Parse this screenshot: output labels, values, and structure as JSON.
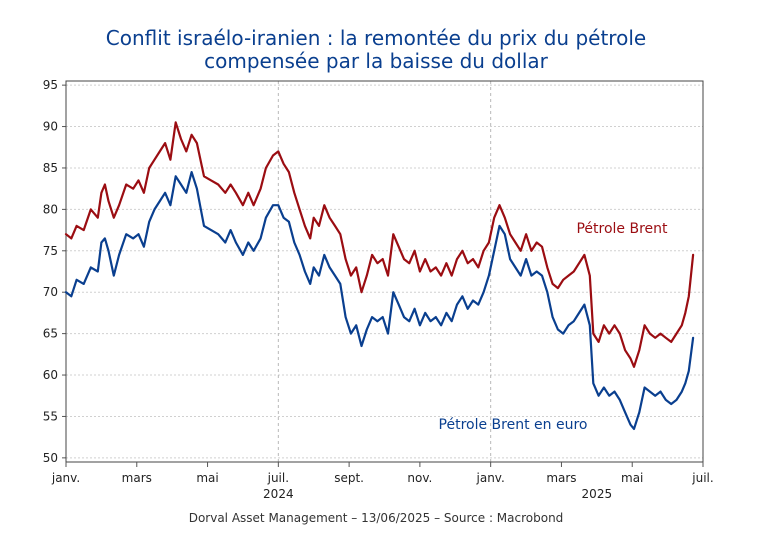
{
  "chart_data": {
    "type": "line",
    "title_line1": "Conflit israélo-iranien : la remontée du prix du pétrole",
    "title_line2": "compensée par la baisse du dollar",
    "footer": "Dorval Asset Management – 13/06/2025  –   Source : Macrobond",
    "ylim": [
      49.5,
      95.5
    ],
    "yticks": [
      50,
      55,
      60,
      65,
      70,
      75,
      80,
      85,
      90,
      95
    ],
    "xlim": [
      0,
      18
    ],
    "xticks": [
      {
        "x": 0,
        "label": "janv."
      },
      {
        "x": 2,
        "label": "mars"
      },
      {
        "x": 4,
        "label": "mai"
      },
      {
        "x": 6,
        "label": "juil."
      },
      {
        "x": 8,
        "label": "sept."
      },
      {
        "x": 10,
        "label": "nov."
      },
      {
        "x": 12,
        "label": "janv."
      },
      {
        "x": 14,
        "label": "mars"
      },
      {
        "x": 16,
        "label": "mai"
      },
      {
        "x": 18,
        "label": "juil."
      }
    ],
    "year_labels": [
      {
        "x": 6,
        "label": "2024"
      },
      {
        "x": 15,
        "label": "2025"
      }
    ],
    "vlines": [
      6,
      12
    ],
    "grid": "dashed",
    "series": [
      {
        "name": "Pétrole Brent",
        "color": "#9b0d12",
        "points": [
          [
            0.0,
            77
          ],
          [
            0.15,
            76.5
          ],
          [
            0.3,
            78
          ],
          [
            0.5,
            77.5
          ],
          [
            0.7,
            80
          ],
          [
            0.9,
            79
          ],
          [
            1.0,
            82
          ],
          [
            1.1,
            83
          ],
          [
            1.2,
            81
          ],
          [
            1.35,
            79
          ],
          [
            1.5,
            80.5
          ],
          [
            1.7,
            83
          ],
          [
            1.9,
            82.5
          ],
          [
            2.05,
            83.5
          ],
          [
            2.2,
            82
          ],
          [
            2.35,
            85
          ],
          [
            2.5,
            86
          ],
          [
            2.65,
            87
          ],
          [
            2.8,
            88
          ],
          [
            2.95,
            86
          ],
          [
            3.1,
            90.5
          ],
          [
            3.25,
            88.5
          ],
          [
            3.4,
            87
          ],
          [
            3.55,
            89
          ],
          [
            3.7,
            88
          ],
          [
            3.9,
            84
          ],
          [
            4.1,
            83.5
          ],
          [
            4.3,
            83
          ],
          [
            4.5,
            82
          ],
          [
            4.65,
            83
          ],
          [
            4.8,
            82
          ],
          [
            5.0,
            80.5
          ],
          [
            5.15,
            82
          ],
          [
            5.3,
            80.5
          ],
          [
            5.5,
            82.5
          ],
          [
            5.65,
            85
          ],
          [
            5.85,
            86.5
          ],
          [
            6.0,
            87
          ],
          [
            6.15,
            85.5
          ],
          [
            6.3,
            84.5
          ],
          [
            6.45,
            82
          ],
          [
            6.6,
            80
          ],
          [
            6.75,
            78
          ],
          [
            6.9,
            76.5
          ],
          [
            7.0,
            79
          ],
          [
            7.15,
            78
          ],
          [
            7.3,
            80.5
          ],
          [
            7.45,
            79
          ],
          [
            7.6,
            78
          ],
          [
            7.75,
            77
          ],
          [
            7.9,
            74
          ],
          [
            8.05,
            72
          ],
          [
            8.2,
            73
          ],
          [
            8.35,
            70
          ],
          [
            8.5,
            72
          ],
          [
            8.65,
            74.5
          ],
          [
            8.8,
            73.5
          ],
          [
            8.95,
            74
          ],
          [
            9.1,
            72
          ],
          [
            9.25,
            77
          ],
          [
            9.4,
            75.5
          ],
          [
            9.55,
            74
          ],
          [
            9.7,
            73.5
          ],
          [
            9.85,
            75
          ],
          [
            10.0,
            72.5
          ],
          [
            10.15,
            74
          ],
          [
            10.3,
            72.5
          ],
          [
            10.45,
            73
          ],
          [
            10.6,
            72
          ],
          [
            10.75,
            73.5
          ],
          [
            10.9,
            72
          ],
          [
            11.05,
            74
          ],
          [
            11.2,
            75
          ],
          [
            11.35,
            73.5
          ],
          [
            11.5,
            74
          ],
          [
            11.65,
            73
          ],
          [
            11.8,
            75
          ],
          [
            11.95,
            76
          ],
          [
            12.1,
            79
          ],
          [
            12.25,
            80.5
          ],
          [
            12.4,
            79
          ],
          [
            12.55,
            77
          ],
          [
            12.7,
            76
          ],
          [
            12.85,
            75
          ],
          [
            13.0,
            77
          ],
          [
            13.15,
            75
          ],
          [
            13.3,
            76
          ],
          [
            13.45,
            75.5
          ],
          [
            13.6,
            73
          ],
          [
            13.75,
            71
          ],
          [
            13.9,
            70.5
          ],
          [
            14.05,
            71.5
          ],
          [
            14.2,
            72
          ],
          [
            14.35,
            72.5
          ],
          [
            14.5,
            73.5
          ],
          [
            14.65,
            74.5
          ],
          [
            14.8,
            72
          ],
          [
            14.9,
            65
          ],
          [
            15.05,
            64
          ],
          [
            15.2,
            66
          ],
          [
            15.35,
            65
          ],
          [
            15.5,
            66
          ],
          [
            15.65,
            65
          ],
          [
            15.8,
            63
          ],
          [
            15.95,
            62
          ],
          [
            16.05,
            61
          ],
          [
            16.2,
            63
          ],
          [
            16.35,
            66
          ],
          [
            16.5,
            65
          ],
          [
            16.65,
            64.5
          ],
          [
            16.8,
            65
          ],
          [
            16.95,
            64.5
          ],
          [
            17.1,
            64
          ],
          [
            17.25,
            65
          ],
          [
            17.4,
            66
          ],
          [
            17.5,
            67.5
          ],
          [
            17.6,
            69.5
          ],
          [
            17.72,
            74.5
          ]
        ]
      },
      {
        "name": "Pétrole Brent en euro",
        "color": "#0a3f8f",
        "points": [
          [
            0.0,
            70
          ],
          [
            0.15,
            69.5
          ],
          [
            0.3,
            71.5
          ],
          [
            0.5,
            71
          ],
          [
            0.7,
            73
          ],
          [
            0.9,
            72.5
          ],
          [
            1.0,
            76
          ],
          [
            1.1,
            76.5
          ],
          [
            1.2,
            75
          ],
          [
            1.35,
            72
          ],
          [
            1.5,
            74.5
          ],
          [
            1.7,
            77
          ],
          [
            1.9,
            76.5
          ],
          [
            2.05,
            77
          ],
          [
            2.2,
            75.5
          ],
          [
            2.35,
            78.5
          ],
          [
            2.5,
            80
          ],
          [
            2.65,
            81
          ],
          [
            2.8,
            82
          ],
          [
            2.95,
            80.5
          ],
          [
            3.1,
            84
          ],
          [
            3.25,
            83
          ],
          [
            3.4,
            82
          ],
          [
            3.55,
            84.5
          ],
          [
            3.7,
            82.5
          ],
          [
            3.9,
            78
          ],
          [
            4.1,
            77.5
          ],
          [
            4.3,
            77
          ],
          [
            4.5,
            76
          ],
          [
            4.65,
            77.5
          ],
          [
            4.8,
            76
          ],
          [
            5.0,
            74.5
          ],
          [
            5.15,
            76
          ],
          [
            5.3,
            75
          ],
          [
            5.5,
            76.5
          ],
          [
            5.65,
            79
          ],
          [
            5.85,
            80.5
          ],
          [
            6.0,
            80.5
          ],
          [
            6.15,
            79
          ],
          [
            6.3,
            78.5
          ],
          [
            6.45,
            76
          ],
          [
            6.6,
            74.5
          ],
          [
            6.75,
            72.5
          ],
          [
            6.9,
            71
          ],
          [
            7.0,
            73
          ],
          [
            7.15,
            72
          ],
          [
            7.3,
            74.5
          ],
          [
            7.45,
            73
          ],
          [
            7.6,
            72
          ],
          [
            7.75,
            71
          ],
          [
            7.9,
            67
          ],
          [
            8.05,
            65
          ],
          [
            8.2,
            66
          ],
          [
            8.35,
            63.5
          ],
          [
            8.5,
            65.5
          ],
          [
            8.65,
            67
          ],
          [
            8.8,
            66.5
          ],
          [
            8.95,
            67
          ],
          [
            9.1,
            65
          ],
          [
            9.25,
            70
          ],
          [
            9.4,
            68.5
          ],
          [
            9.55,
            67
          ],
          [
            9.7,
            66.5
          ],
          [
            9.85,
            68
          ],
          [
            10.0,
            66
          ],
          [
            10.15,
            67.5
          ],
          [
            10.3,
            66.5
          ],
          [
            10.45,
            67
          ],
          [
            10.6,
            66
          ],
          [
            10.75,
            67.5
          ],
          [
            10.9,
            66.5
          ],
          [
            11.05,
            68.5
          ],
          [
            11.2,
            69.5
          ],
          [
            11.35,
            68
          ],
          [
            11.5,
            69
          ],
          [
            11.65,
            68.5
          ],
          [
            11.8,
            70
          ],
          [
            11.95,
            72
          ],
          [
            12.1,
            75
          ],
          [
            12.25,
            78
          ],
          [
            12.4,
            77
          ],
          [
            12.55,
            74
          ],
          [
            12.7,
            73
          ],
          [
            12.85,
            72
          ],
          [
            13.0,
            74
          ],
          [
            13.15,
            72
          ],
          [
            13.3,
            72.5
          ],
          [
            13.45,
            72
          ],
          [
            13.6,
            70
          ],
          [
            13.75,
            67
          ],
          [
            13.9,
            65.5
          ],
          [
            14.05,
            65
          ],
          [
            14.2,
            66
          ],
          [
            14.35,
            66.5
          ],
          [
            14.5,
            67.5
          ],
          [
            14.65,
            68.5
          ],
          [
            14.8,
            66
          ],
          [
            14.9,
            59
          ],
          [
            15.05,
            57.5
          ],
          [
            15.2,
            58.5
          ],
          [
            15.35,
            57.5
          ],
          [
            15.5,
            58
          ],
          [
            15.65,
            57
          ],
          [
            15.8,
            55.5
          ],
          [
            15.95,
            54
          ],
          [
            16.05,
            53.5
          ],
          [
            16.2,
            55.5
          ],
          [
            16.35,
            58.5
          ],
          [
            16.5,
            58
          ],
          [
            16.65,
            57.5
          ],
          [
            16.8,
            58
          ],
          [
            16.95,
            57
          ],
          [
            17.1,
            56.5
          ],
          [
            17.25,
            57
          ],
          [
            17.4,
            58
          ],
          [
            17.5,
            59
          ],
          [
            17.6,
            60.5
          ],
          [
            17.72,
            64.5
          ]
        ]
      }
    ]
  }
}
